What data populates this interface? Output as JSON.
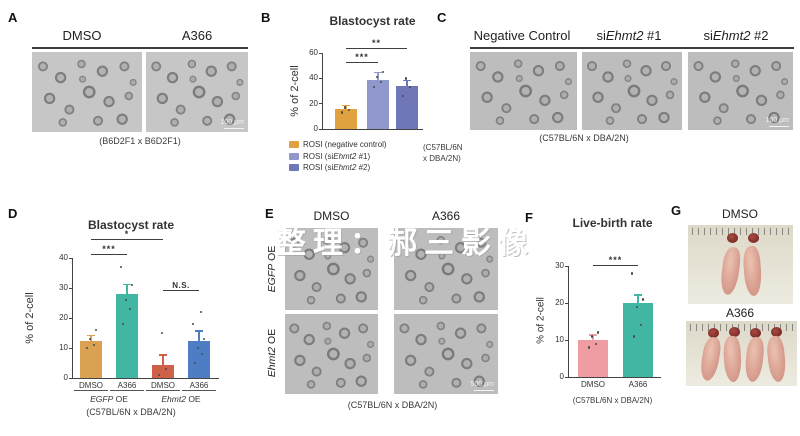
{
  "watermark": "整理：郝三影像",
  "panel_a": {
    "label": "A",
    "headers": [
      "DMSO",
      "A366"
    ],
    "caption": "(B6D2F1 x B6D2F1)",
    "scale_bar": "100 µm"
  },
  "panel_b": {
    "label": "B",
    "caption_lines": [
      "(C57BL/6N",
      "x DBA/2N)"
    ]
  },
  "panel_c": {
    "label": "C",
    "headers": [
      [
        {
          "t": "Negative Control"
        }
      ],
      [
        {
          "t": "si"
        },
        {
          "t": "Ehmt2",
          "i": true
        },
        {
          "t": " #1"
        }
      ],
      [
        {
          "t": "si"
        },
        {
          "t": "Ehmt2",
          "i": true
        },
        {
          "t": " #2"
        }
      ]
    ],
    "caption": "(C57BL/6N x DBA/2N)",
    "scale_bar": "100 µm"
  },
  "panel_d": {
    "label": "D",
    "caption": "(C57BL/6N x DBA/2N)"
  },
  "panel_e": {
    "label": "E",
    "col_headers": [
      "DMSO",
      "A366"
    ],
    "row_labels": [
      [
        {
          "t": "EGFP",
          "i": true
        },
        {
          "t": " OE"
        }
      ],
      [
        {
          "t": "Ehmt2",
          "i": true
        },
        {
          "t": " OE"
        }
      ]
    ],
    "caption": "(C57BL/6N x DBA/2N)",
    "scale_bar": "500 µm"
  },
  "panel_f": {
    "label": "F",
    "caption": "(C57BL/6N x DBA/2N)"
  },
  "panel_g": {
    "label": "G",
    "headers": [
      "DMSO",
      "A366"
    ]
  },
  "chart_data": [
    {
      "id": "B",
      "type": "bar",
      "title": "Blastocyst rate",
      "ylabel": "% of 2-cell",
      "ylim": [
        0,
        60
      ],
      "yticks": [
        0,
        20,
        40,
        60
      ],
      "categories": [
        "ROSI (negative control)",
        "ROSI (siEhmt2 #1)",
        "ROSI (siEhmt2 #2)"
      ],
      "values": [
        16,
        39,
        34
      ],
      "errors": [
        2,
        5,
        4
      ],
      "points": [
        [
          13,
          15,
          17
        ],
        [
          33,
          37,
          41,
          45
        ],
        [
          26,
          33,
          40
        ]
      ],
      "colors": [
        "#DFA23E",
        "#9097CB",
        "#7077B9"
      ],
      "significance": [
        {
          "from": 0,
          "to": 1,
          "label": "***",
          "at": 52
        },
        {
          "from": 0,
          "to": 2,
          "label": "**",
          "at": 63
        }
      ],
      "legend": [
        {
          "color": "#DFA23E",
          "segments": [
            {
              "t": "ROSI (negative control)"
            }
          ]
        },
        {
          "color": "#9097CB",
          "segments": [
            {
              "t": "ROSI (si"
            },
            {
              "t": "Ehmt2",
              "i": true
            },
            {
              "t": " #1)"
            }
          ]
        },
        {
          "color": "#7077B9",
          "segments": [
            {
              "t": "ROSI (si"
            },
            {
              "t": "Ehmt2",
              "i": true
            },
            {
              "t": " #2)"
            }
          ]
        }
      ],
      "show_xlabels": false
    },
    {
      "id": "D",
      "type": "bar",
      "title": "Blastocyst rate",
      "ylabel": "% of 2-cell",
      "ylim": [
        0,
        40
      ],
      "yticks": [
        0,
        10,
        20,
        30,
        40
      ],
      "categories": [
        "DMSO",
        "A366",
        "DMSO",
        "A366"
      ],
      "values": [
        12.5,
        28,
        4.5,
        12.5
      ],
      "errors": [
        1.5,
        3,
        3,
        3
      ],
      "points": [
        [
          10,
          11,
          13,
          16
        ],
        [
          18,
          23,
          26,
          31,
          37
        ],
        [
          1,
          3,
          15
        ],
        [
          5,
          8,
          10,
          13,
          18,
          22
        ]
      ],
      "colors": [
        "#DBA152",
        "#41B6A3",
        "#CE6148",
        "#4D7EC3"
      ],
      "significance": [
        {
          "from": 0,
          "to": 1,
          "label": "***",
          "at": 41
        },
        {
          "from": 0,
          "to": 2,
          "label": "*",
          "at": 46
        },
        {
          "from": 2,
          "to": 3,
          "label": "N.S.",
          "at": 29
        }
      ],
      "groups": [
        {
          "segments": [
            {
              "t": "EGFP",
              "i": true
            },
            {
              "t": " OE"
            }
          ],
          "from": 0,
          "to": 1
        },
        {
          "segments": [
            {
              "t": "Ehmt2",
              "i": true
            },
            {
              "t": " OE"
            }
          ],
          "from": 2,
          "to": 3
        }
      ],
      "show_xlabels": true
    },
    {
      "id": "F",
      "type": "bar",
      "title": "Live-birth rate",
      "ylabel": "% of 2-cell",
      "ylim": [
        0,
        30
      ],
      "yticks": [
        0,
        10,
        20,
        30
      ],
      "categories": [
        "DMSO",
        "A366"
      ],
      "values": [
        10,
        20
      ],
      "errors": [
        1.2,
        2
      ],
      "points": [
        [
          8,
          9,
          11,
          12
        ],
        [
          11,
          14,
          19,
          21,
          28
        ]
      ],
      "colors": [
        "#F09CA3",
        "#41B6A3"
      ],
      "significance": [
        {
          "from": 0,
          "to": 1,
          "label": "***",
          "at": 30
        }
      ],
      "show_xlabels": true
    }
  ]
}
